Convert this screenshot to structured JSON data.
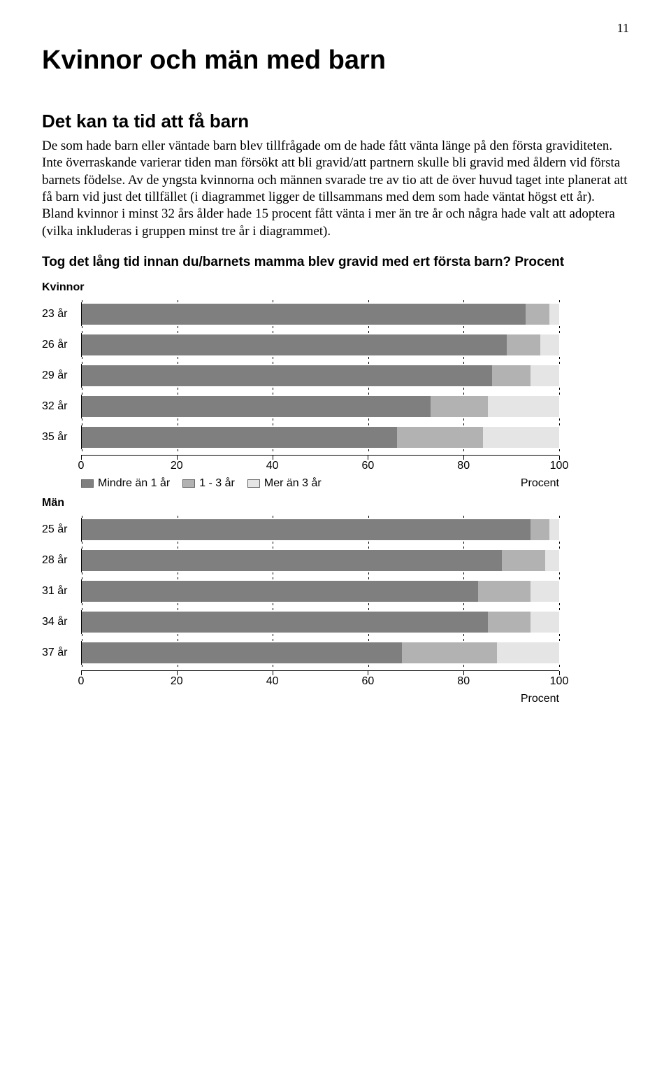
{
  "page_number": "11",
  "title": "Kvinnor och män med barn",
  "subtitle": "Det kan ta tid att få barn",
  "body_text": "De som hade barn eller väntade barn blev tillfrågade om de hade fått vänta länge på den första graviditeten. Inte överraskande varierar tiden man försökt att bli gravid/att partnern skulle bli gravid med åldern vid första barnets födelse. Av de yngsta kvinnorna och männen svarade tre av tio att de över huvud taget inte planerat att få barn vid just det tillfället (i diagrammet ligger de tillsammans med dem som hade väntat högst ett år). Bland kvinnor i minst 32 års ålder hade 15 procent fått vänta i mer än tre år och några hade valt att adoptera (vilka inkluderas i gruppen minst tre år i diagrammet).",
  "question": "Tog det lång tid innan du/barnets mamma blev gravid med ert första barn? Procent",
  "women_label": "Kvinnor",
  "men_label": "Män",
  "axis_label": "Procent",
  "legend": {
    "lt1": "Mindre än 1 år",
    "mid": "1 - 3 år",
    "gt3": "Mer än 3 år"
  },
  "colors": {
    "lt1": "#7f7f7f",
    "mid": "#b2b2b2",
    "gt3": "#e5e5e5",
    "background": "#ffffff",
    "tick": "#000000"
  },
  "axis": {
    "min": 0,
    "max": 100,
    "ticks": [
      0,
      20,
      40,
      60,
      80,
      100
    ]
  },
  "women_chart": {
    "type": "stacked-bar",
    "rows": [
      {
        "label": "23 år",
        "values": [
          93,
          5,
          2
        ]
      },
      {
        "label": "26 år",
        "values": [
          89,
          7,
          4
        ]
      },
      {
        "label": "29 år",
        "values": [
          86,
          8,
          6
        ]
      },
      {
        "label": "32 år",
        "values": [
          73,
          12,
          15
        ]
      },
      {
        "label": "35 år",
        "values": [
          66,
          18,
          16
        ]
      }
    ]
  },
  "men_chart": {
    "type": "stacked-bar",
    "rows": [
      {
        "label": "25 år",
        "values": [
          94,
          4,
          2
        ]
      },
      {
        "label": "28 år",
        "values": [
          88,
          9,
          3
        ]
      },
      {
        "label": "31 år",
        "values": [
          83,
          11,
          6
        ]
      },
      {
        "label": "34 år",
        "values": [
          85,
          9,
          6
        ]
      },
      {
        "label": "37 år",
        "values": [
          67,
          20,
          13
        ]
      }
    ]
  }
}
